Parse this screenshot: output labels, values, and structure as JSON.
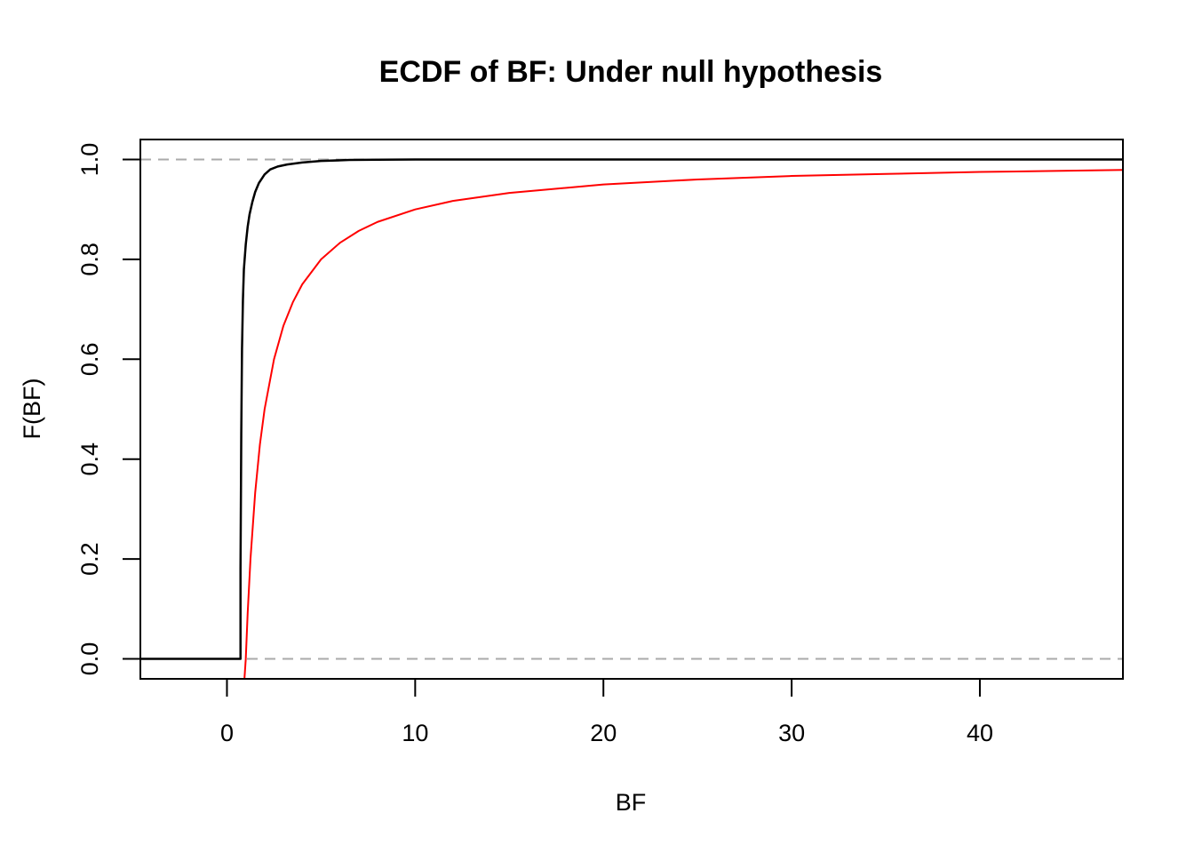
{
  "chart_data": {
    "type": "line",
    "title": "ECDF of BF: Under null hypothesis",
    "xlabel": "BF",
    "ylabel": "F(BF)",
    "xlim": [
      -4.6,
      47.6
    ],
    "ylim": [
      -0.04,
      1.04
    ],
    "x_ticks": [
      0,
      10,
      20,
      30,
      40
    ],
    "y_ticks": [
      0.0,
      0.2,
      0.4,
      0.6,
      0.8,
      1.0
    ],
    "x_tick_labels": [
      "0",
      "10",
      "20",
      "30",
      "40"
    ],
    "y_tick_labels": [
      "0.0",
      "0.2",
      "0.4",
      "0.6",
      "0.8",
      "1.0"
    ],
    "reference_lines": [
      {
        "y": 0.0,
        "style": "dashed",
        "color": "#aaaaaa"
      },
      {
        "y": 1.0,
        "style": "dashed",
        "color": "#aaaaaa"
      }
    ],
    "grid": false,
    "legend": "none",
    "series": [
      {
        "color": "#000000",
        "style": "step",
        "x": [
          -4.6,
          0.72,
          0.72,
          0.76,
          0.8,
          0.85,
          0.9,
          1.0,
          1.1,
          1.2,
          1.35,
          1.5,
          1.7,
          2.0,
          2.3,
          2.7,
          3.2,
          4.0,
          5.0,
          6.5,
          8.0,
          10.0,
          47.6
        ],
        "y": [
          0.0,
          0.0,
          0.18,
          0.45,
          0.62,
          0.72,
          0.78,
          0.83,
          0.865,
          0.89,
          0.915,
          0.935,
          0.953,
          0.97,
          0.98,
          0.986,
          0.99,
          0.994,
          0.997,
          0.999,
          0.9995,
          1.0,
          1.0
        ]
      },
      {
        "color": "#ff0000",
        "style": "line",
        "x": [
          1.0,
          1.1,
          1.25,
          1.5,
          1.75,
          2.0,
          2.5,
          3.0,
          3.5,
          4.0,
          5.0,
          6.0,
          7.0,
          8.0,
          10.0,
          12.0,
          15.0,
          20.0,
          25.0,
          30.0,
          35.0,
          40.0,
          47.6
        ],
        "y": [
          0.0,
          0.091,
          0.2,
          0.333,
          0.429,
          0.5,
          0.6,
          0.667,
          0.714,
          0.75,
          0.8,
          0.833,
          0.857,
          0.875,
          0.9,
          0.917,
          0.933,
          0.95,
          0.96,
          0.967,
          0.971,
          0.975,
          0.979
        ]
      }
    ]
  }
}
